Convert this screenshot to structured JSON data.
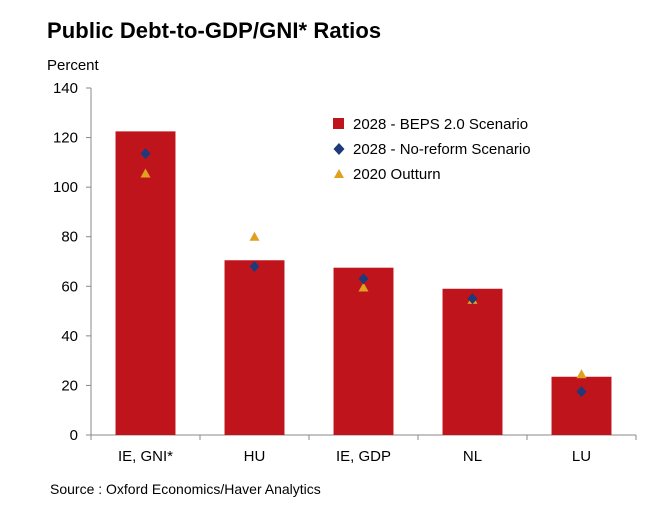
{
  "chart_data": {
    "type": "bar",
    "title": "Public Debt-to-GDP/GNI* Ratios",
    "ylabel": "Percent",
    "xlabel": "",
    "ylim": [
      0,
      140
    ],
    "yticks": [
      0,
      20,
      40,
      60,
      80,
      100,
      120,
      140
    ],
    "grid": false,
    "legend_position": "top-right",
    "categories": [
      "IE, GNI*",
      "HU",
      "IE, GDP",
      "NL",
      "LU"
    ],
    "series": [
      {
        "name": "2028 - BEPS 2.0 Scenario",
        "kind": "bar",
        "color": "#c0141c",
        "values": [
          122.5,
          70.5,
          67.5,
          59,
          23.5
        ]
      },
      {
        "name": "2028 - No-reform Scenario",
        "kind": "marker-diamond",
        "color": "#1f3a7a",
        "values": [
          113.5,
          68,
          63,
          55,
          17.5
        ]
      },
      {
        "name": "2020 Outturn",
        "kind": "marker-triangle",
        "color": "#e0a020",
        "values": [
          105.5,
          80,
          59.5,
          54.5,
          24.5
        ]
      }
    ],
    "source": "Source : Oxford Economics/Haver Analytics"
  }
}
